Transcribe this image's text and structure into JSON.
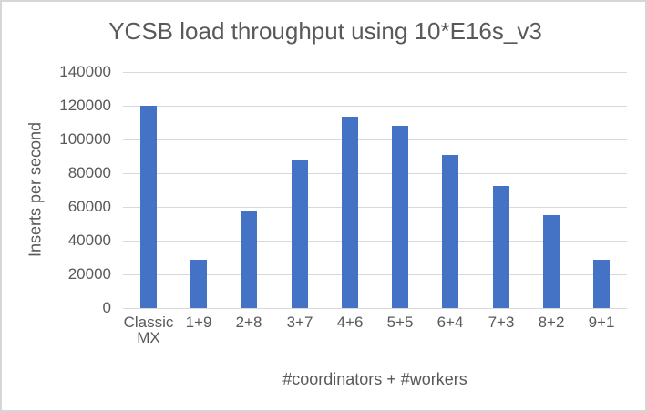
{
  "chart_data": {
    "type": "bar",
    "title": "YCSB load throughput using 10*E16s_v3",
    "xlabel": "#coordinators + #workers",
    "ylabel": "Inserts per second",
    "categories": [
      "Classic MX",
      "1+9",
      "2+8",
      "3+7",
      "4+6",
      "5+5",
      "6+4",
      "7+3",
      "8+2",
      "9+1"
    ],
    "values": [
      120000,
      28600,
      57700,
      88000,
      113400,
      108000,
      91000,
      72400,
      55000,
      28600
    ],
    "ylim": [
      0,
      140000
    ],
    "ytick_interval": 20000,
    "ytick_labels": [
      "0",
      "20000",
      "40000",
      "60000",
      "80000",
      "100000",
      "120000",
      "140000"
    ],
    "grid": true,
    "legend": "none",
    "colors": {
      "bar": "#4472C4",
      "gridline": "#D9D9D9",
      "text": "#595959"
    }
  }
}
